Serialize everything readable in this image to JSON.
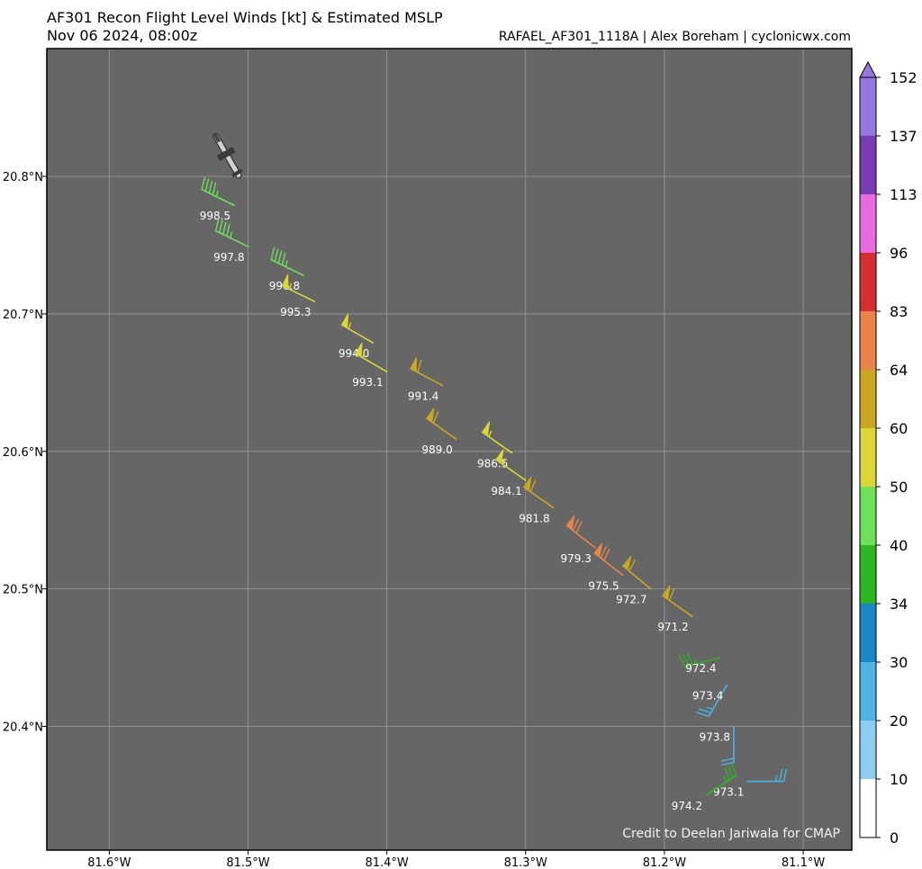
{
  "header": {
    "title": "AF301 Recon Flight Level Winds [kt] & Estimated MSLP",
    "subtitle": "Nov 06 2024, 08:00z",
    "source": "RAFAEL_AF301_1118A | Alex Boreham | cyclonicwx.com"
  },
  "plot_credit": "Credit to Deelan Jariwala for CMAP",
  "icons": {
    "aircraft": "aircraft-icon"
  },
  "colors": {
    "background": "#666666",
    "grid": "#9a9a9a"
  },
  "chart_data": {
    "type": "scatter",
    "xlabel": "",
    "ylabel": "",
    "xlim": [
      -81.645,
      -81.065
    ],
    "ylim": [
      20.31,
      20.893
    ],
    "x_ticks": [
      -81.6,
      -81.5,
      -81.4,
      -81.3,
      -81.2,
      -81.1
    ],
    "x_tick_labels": [
      "81.6°W",
      "81.5°W",
      "81.4°W",
      "81.3°W",
      "81.2°W",
      "81.1°W"
    ],
    "y_ticks": [
      20.4,
      20.5,
      20.6,
      20.7,
      20.8
    ],
    "y_tick_labels": [
      "20.4°N",
      "20.5°N",
      "20.6°N",
      "20.7°N",
      "20.8°N"
    ],
    "grid": true,
    "aircraft": {
      "lon": -81.515,
      "lat": 20.815
    },
    "colorbar": {
      "bounds": [
        0,
        10,
        20,
        30,
        34,
        40,
        50,
        60,
        64,
        83,
        96,
        113,
        137,
        152
      ],
      "colors": [
        "#ffffff",
        "#8ecdef",
        "#4fb3e6",
        "#1a86c4",
        "#2db526",
        "#6ee05c",
        "#dcd63b",
        "#c9a723",
        "#e9854a",
        "#d53030",
        "#e86be0",
        "#7a3cb2",
        "#9577e0"
      ],
      "extend": "max"
    },
    "points": [
      {
        "lon": -81.51,
        "lat": 20.779,
        "wspd": 44,
        "wdir": 296,
        "mslp": "998.5"
      },
      {
        "lon": -81.5,
        "lat": 20.749,
        "wspd": 44,
        "wdir": 296,
        "mslp": "997.8"
      },
      {
        "lon": -81.46,
        "lat": 20.728,
        "wspd": 44,
        "wdir": 296,
        "mslp": "996.8"
      },
      {
        "lon": -81.452,
        "lat": 20.709,
        "wspd": 53,
        "wdir": 296,
        "mslp": "995.3"
      },
      {
        "lon": -81.41,
        "lat": 20.679,
        "wspd": 54,
        "wdir": 300,
        "mslp": "994.0"
      },
      {
        "lon": -81.4,
        "lat": 20.658,
        "wspd": 55,
        "wdir": 300,
        "mslp": "993.1"
      },
      {
        "lon": -81.36,
        "lat": 20.648,
        "wspd": 62,
        "wdir": 298,
        "mslp": "991.4"
      },
      {
        "lon": -81.35,
        "lat": 20.609,
        "wspd": 62,
        "wdir": 305,
        "mslp": "989.0"
      },
      {
        "lon": -81.31,
        "lat": 20.599,
        "wspd": 56,
        "wdir": 305,
        "mslp": "986.5"
      },
      {
        "lon": -81.3,
        "lat": 20.579,
        "wspd": 56,
        "wdir": 305,
        "mslp": "984.1"
      },
      {
        "lon": -81.28,
        "lat": 20.559,
        "wspd": 61,
        "wdir": 305,
        "mslp": "981.8"
      },
      {
        "lon": -81.25,
        "lat": 20.53,
        "wspd": 70,
        "wdir": 308,
        "mslp": "979.3"
      },
      {
        "lon": -81.23,
        "lat": 20.51,
        "wspd": 72,
        "wdir": 308,
        "mslp": "975.5"
      },
      {
        "lon": -81.21,
        "lat": 20.5,
        "wspd": 60,
        "wdir": 310,
        "mslp": "972.7"
      },
      {
        "lon": -81.18,
        "lat": 20.48,
        "wspd": 60,
        "wdir": 305,
        "mslp": "971.2"
      },
      {
        "lon": -81.16,
        "lat": 20.45,
        "wspd": 34,
        "wdir": 255,
        "mslp": "972.4"
      },
      {
        "lon": -81.155,
        "lat": 20.43,
        "wspd": 25,
        "wdir": 210,
        "mslp": "973.4"
      },
      {
        "lon": -81.15,
        "lat": 20.4,
        "wspd": 22,
        "wdir": 180,
        "mslp": "973.8"
      },
      {
        "lon": -81.14,
        "lat": 20.36,
        "wspd": 24,
        "wdir": 90,
        "mslp": "973.1"
      },
      {
        "lon": -81.17,
        "lat": 20.35,
        "wspd": 36,
        "wdir": 57,
        "mslp": "974.2"
      }
    ]
  }
}
